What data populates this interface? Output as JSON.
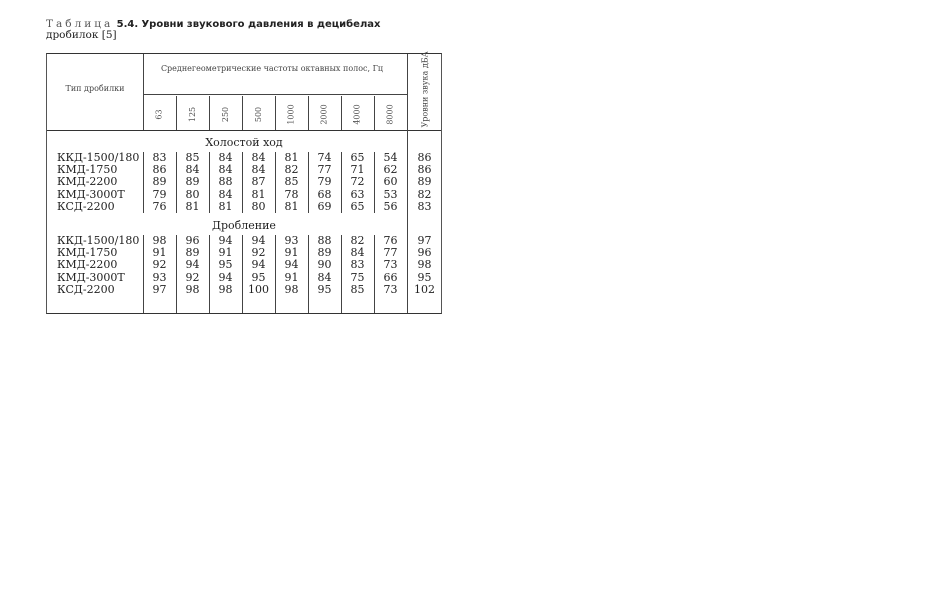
{
  "caption": {
    "label": "Таблица",
    "number": "5.4.",
    "title": "Уровни звукового давления в децибелах",
    "title_cont": "дробилок [5]"
  },
  "header": {
    "type_col": "Тип дробилки",
    "freq_group": "Среднегеометрические частоты октавных полос, Гц",
    "frequencies": [
      "63",
      "125",
      "250",
      "500",
      "1000",
      "2000",
      "4000",
      "8000"
    ],
    "level_col": "Уровни звука дБА"
  },
  "sections": [
    {
      "title": "Холостой ход",
      "rows": [
        {
          "name": "ККД-1500/180",
          "values": [
            "83",
            "85",
            "84",
            "84",
            "81",
            "74",
            "65",
            "54",
            "86"
          ]
        },
        {
          "name": "КМД-1750",
          "values": [
            "86",
            "84",
            "84",
            "84",
            "82",
            "77",
            "71",
            "62",
            "86"
          ]
        },
        {
          "name": "КМД-2200",
          "values": [
            "89",
            "89",
            "88",
            "87",
            "85",
            "79",
            "72",
            "60",
            "89"
          ]
        },
        {
          "name": "КМД-3000Т",
          "values": [
            "79",
            "80",
            "84",
            "81",
            "78",
            "68",
            "63",
            "53",
            "82"
          ]
        },
        {
          "name": "КСД-2200",
          "values": [
            "76",
            "81",
            "81",
            "80",
            "81",
            "69",
            "65",
            "56",
            "83"
          ]
        }
      ]
    },
    {
      "title": "Дробление",
      "rows": [
        {
          "name": "ККД-1500/180",
          "values": [
            "98",
            "96",
            "94",
            "94",
            "93",
            "88",
            "82",
            "76",
            "97"
          ]
        },
        {
          "name": "КМД-1750",
          "values": [
            "91",
            "89",
            "91",
            "92",
            "91",
            "89",
            "84",
            "77",
            "96"
          ]
        },
        {
          "name": "КМД-2200",
          "values": [
            "92",
            "94",
            "95",
            "94",
            "94",
            "90",
            "83",
            "73",
            "98"
          ]
        },
        {
          "name": "КМД-3000Т",
          "values": [
            "93",
            "92",
            "94",
            "95",
            "91",
            "84",
            "75",
            "66",
            "95"
          ]
        },
        {
          "name": "КСД-2200",
          "values": [
            "97",
            "98",
            "98",
            "100",
            "98",
            "95",
            "85",
            "73",
            "102"
          ]
        }
      ]
    }
  ]
}
